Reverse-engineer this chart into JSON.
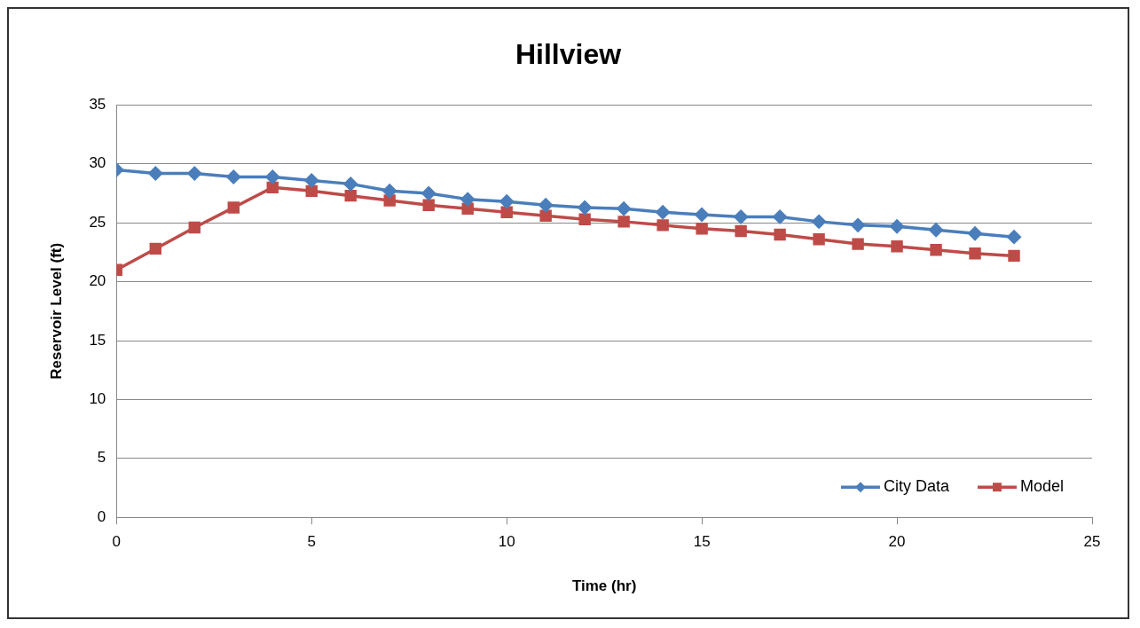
{
  "chart_data": {
    "type": "line",
    "title": "Hillview",
    "xlabel": "Time (hr)",
    "ylabel": "Reservoir Level (ft)",
    "x": [
      0,
      1,
      2,
      3,
      4,
      5,
      6,
      7,
      8,
      9,
      10,
      11,
      12,
      13,
      14,
      15,
      16,
      17,
      18,
      19,
      20,
      21,
      22,
      23
    ],
    "series": [
      {
        "name": "City Data",
        "color": "#4a7ebb",
        "marker": "diamond",
        "values": [
          29.5,
          29.2,
          29.2,
          28.9,
          28.9,
          28.6,
          28.3,
          27.7,
          27.5,
          27.0,
          26.8,
          26.5,
          26.3,
          26.2,
          25.9,
          25.7,
          25.5,
          25.5,
          25.1,
          24.8,
          24.7,
          24.4,
          24.1,
          23.8
        ]
      },
      {
        "name": "Model",
        "color": "#be4b48",
        "marker": "square",
        "values": [
          21.0,
          22.8,
          24.6,
          26.3,
          28.0,
          27.7,
          27.3,
          26.9,
          26.5,
          26.2,
          25.9,
          25.6,
          25.3,
          25.1,
          24.8,
          24.5,
          24.3,
          24.0,
          23.6,
          23.2,
          23.0,
          22.7,
          22.4,
          22.2
        ]
      }
    ],
    "xlim": [
      0,
      25
    ],
    "xticks": [
      0,
      5,
      10,
      15,
      20,
      25
    ],
    "ylim": [
      0,
      35
    ],
    "yticks": [
      0,
      5,
      10,
      15,
      20,
      25,
      30,
      35
    ],
    "grid": "y",
    "legend": "bottom right",
    "line_style": "solid"
  }
}
